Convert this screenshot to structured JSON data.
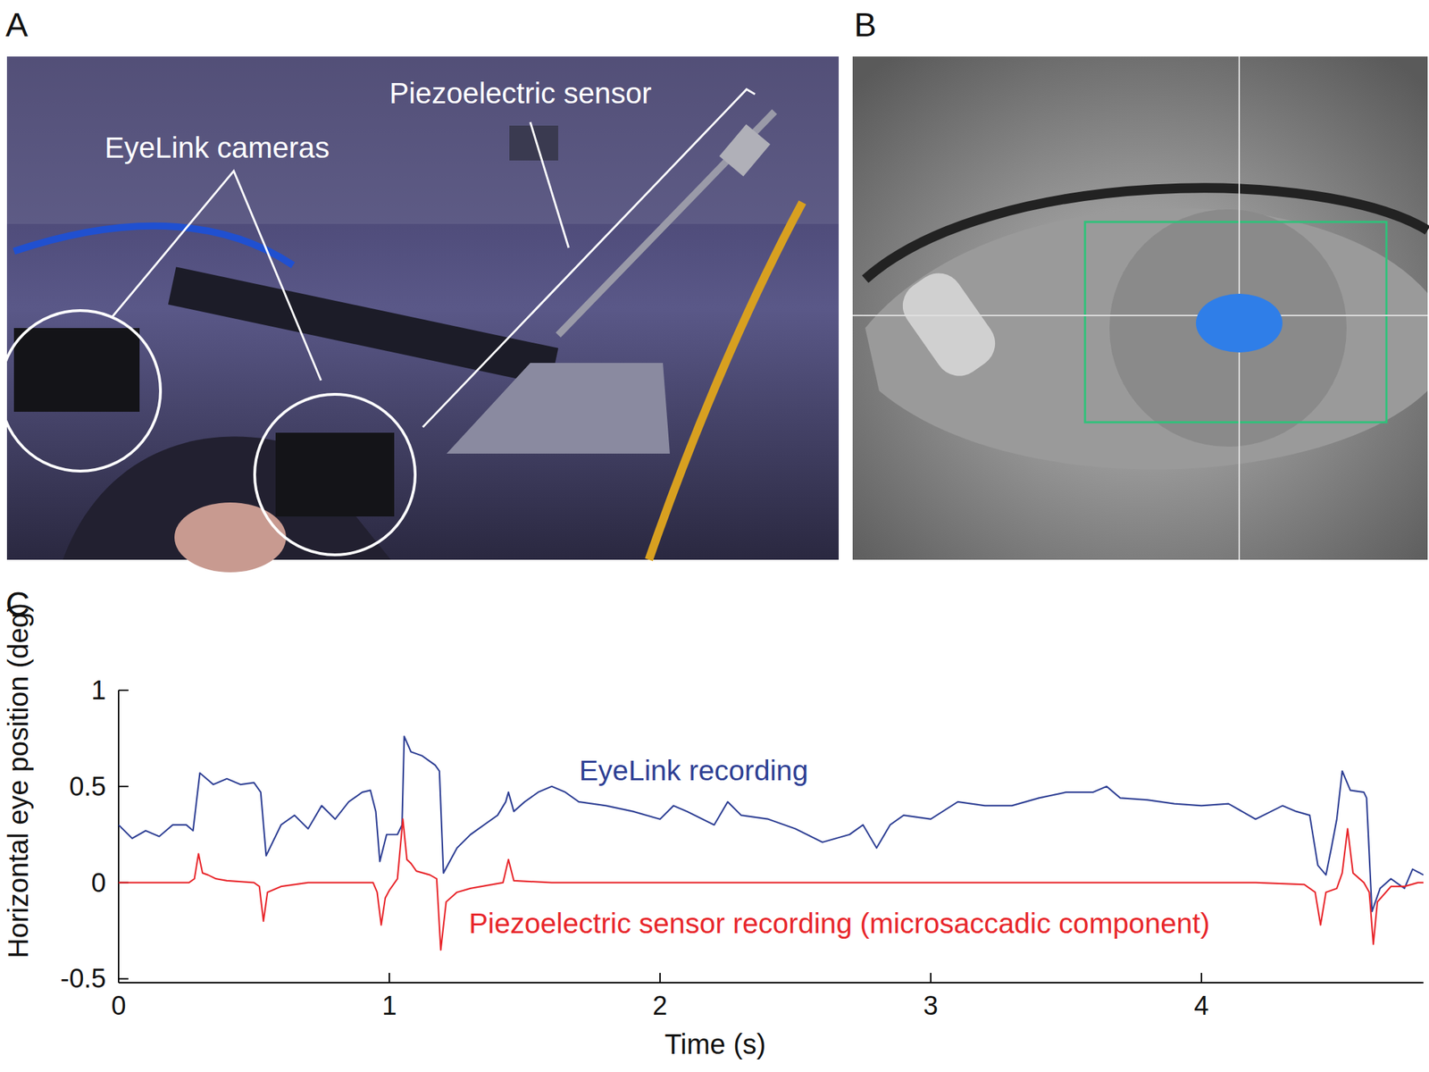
{
  "figure": {
    "panels": [
      {
        "label": "A",
        "annotations": [
          "EyeLink cameras",
          "Piezoelectric sensor"
        ]
      },
      {
        "label": "B"
      },
      {
        "label": "C"
      }
    ]
  },
  "chart_data": {
    "type": "line",
    "x_label": "Time (s)",
    "y_label": "Horizontal eye position (deg)",
    "xlim": [
      0,
      4.82
    ],
    "ylim": [
      -0.52,
      1
    ],
    "xticks": [
      0,
      1,
      2,
      3,
      4
    ],
    "yticks": [
      -0.5,
      0,
      0.5,
      1
    ],
    "grid": false,
    "series": [
      {
        "name": "EyeLink recording",
        "color": "#2e3f94",
        "line_style": "solid",
        "x": [
          0,
          0.05,
          0.1,
          0.15,
          0.2,
          0.25,
          0.275,
          0.3,
          0.35,
          0.4,
          0.45,
          0.5,
          0.525,
          0.545,
          0.6,
          0.65,
          0.7,
          0.75,
          0.8,
          0.85,
          0.9,
          0.93,
          0.95,
          0.965,
          0.99,
          1.03,
          1.047,
          1.055,
          1.08,
          1.12,
          1.17,
          1.185,
          1.2,
          1.25,
          1.3,
          1.35,
          1.4,
          1.43,
          1.44,
          1.46,
          1.5,
          1.55,
          1.6,
          1.65,
          1.7,
          1.8,
          1.9,
          2.0,
          2.05,
          2.1,
          2.2,
          2.25,
          2.3,
          2.4,
          2.5,
          2.6,
          2.7,
          2.75,
          2.8,
          2.85,
          2.9,
          3.0,
          3.1,
          3.2,
          3.3,
          3.4,
          3.5,
          3.6,
          3.65,
          3.7,
          3.8,
          3.9,
          4.0,
          4.1,
          4.2,
          4.3,
          4.35,
          4.4,
          4.43,
          4.46,
          4.48,
          4.5,
          4.52,
          4.55,
          4.6,
          4.61,
          4.63,
          4.66,
          4.7,
          4.75,
          4.78,
          4.82
        ],
        "values": [
          0.3,
          0.23,
          0.27,
          0.24,
          0.3,
          0.3,
          0.27,
          0.57,
          0.51,
          0.54,
          0.51,
          0.52,
          0.47,
          0.14,
          0.3,
          0.35,
          0.28,
          0.4,
          0.33,
          0.42,
          0.47,
          0.48,
          0.37,
          0.11,
          0.25,
          0.25,
          0.3,
          0.76,
          0.68,
          0.66,
          0.61,
          0.58,
          0.05,
          0.18,
          0.25,
          0.3,
          0.35,
          0.42,
          0.47,
          0.37,
          0.42,
          0.47,
          0.5,
          0.47,
          0.42,
          0.4,
          0.37,
          0.33,
          0.4,
          0.37,
          0.3,
          0.42,
          0.35,
          0.33,
          0.28,
          0.21,
          0.25,
          0.3,
          0.18,
          0.3,
          0.35,
          0.33,
          0.42,
          0.4,
          0.4,
          0.44,
          0.47,
          0.47,
          0.5,
          0.44,
          0.43,
          0.41,
          0.4,
          0.41,
          0.33,
          0.4,
          0.37,
          0.35,
          0.09,
          0.04,
          0.18,
          0.33,
          0.58,
          0.48,
          0.47,
          0.44,
          -0.15,
          -0.03,
          0.02,
          -0.03,
          0.07,
          0.04
        ]
      },
      {
        "name": "Piezoelectric sensor recording (microsaccadic component)",
        "color": "#e8262b",
        "line_style": "solid",
        "x": [
          0,
          0.26,
          0.28,
          0.295,
          0.31,
          0.33,
          0.36,
          0.4,
          0.5,
          0.52,
          0.535,
          0.55,
          0.6,
          0.7,
          0.94,
          0.955,
          0.97,
          0.985,
          1.0,
          1.03,
          1.05,
          1.065,
          1.08,
          1.1,
          1.15,
          1.175,
          1.19,
          1.21,
          1.25,
          1.3,
          1.38,
          1.42,
          1.44,
          1.46,
          1.6,
          4.2,
          4.38,
          4.42,
          4.44,
          4.46,
          4.5,
          4.52,
          4.54,
          4.56,
          4.6,
          4.62,
          4.635,
          4.65,
          4.7,
          4.75,
          4.8,
          4.82
        ],
        "values": [
          0,
          0,
          0.02,
          0.15,
          0.05,
          0.04,
          0.02,
          0.01,
          0,
          -0.02,
          -0.2,
          -0.05,
          -0.02,
          0,
          0,
          -0.05,
          -0.22,
          -0.08,
          -0.04,
          0.02,
          0.33,
          0.12,
          0.1,
          0.06,
          0.04,
          0.02,
          -0.35,
          -0.1,
          -0.05,
          -0.03,
          -0.01,
          0,
          0.12,
          0.01,
          0,
          0,
          -0.01,
          -0.05,
          -0.22,
          -0.05,
          -0.03,
          0.05,
          0.28,
          0.05,
          0,
          -0.05,
          -0.32,
          -0.1,
          -0.02,
          -0.02,
          0,
          0
        ]
      }
    ]
  }
}
